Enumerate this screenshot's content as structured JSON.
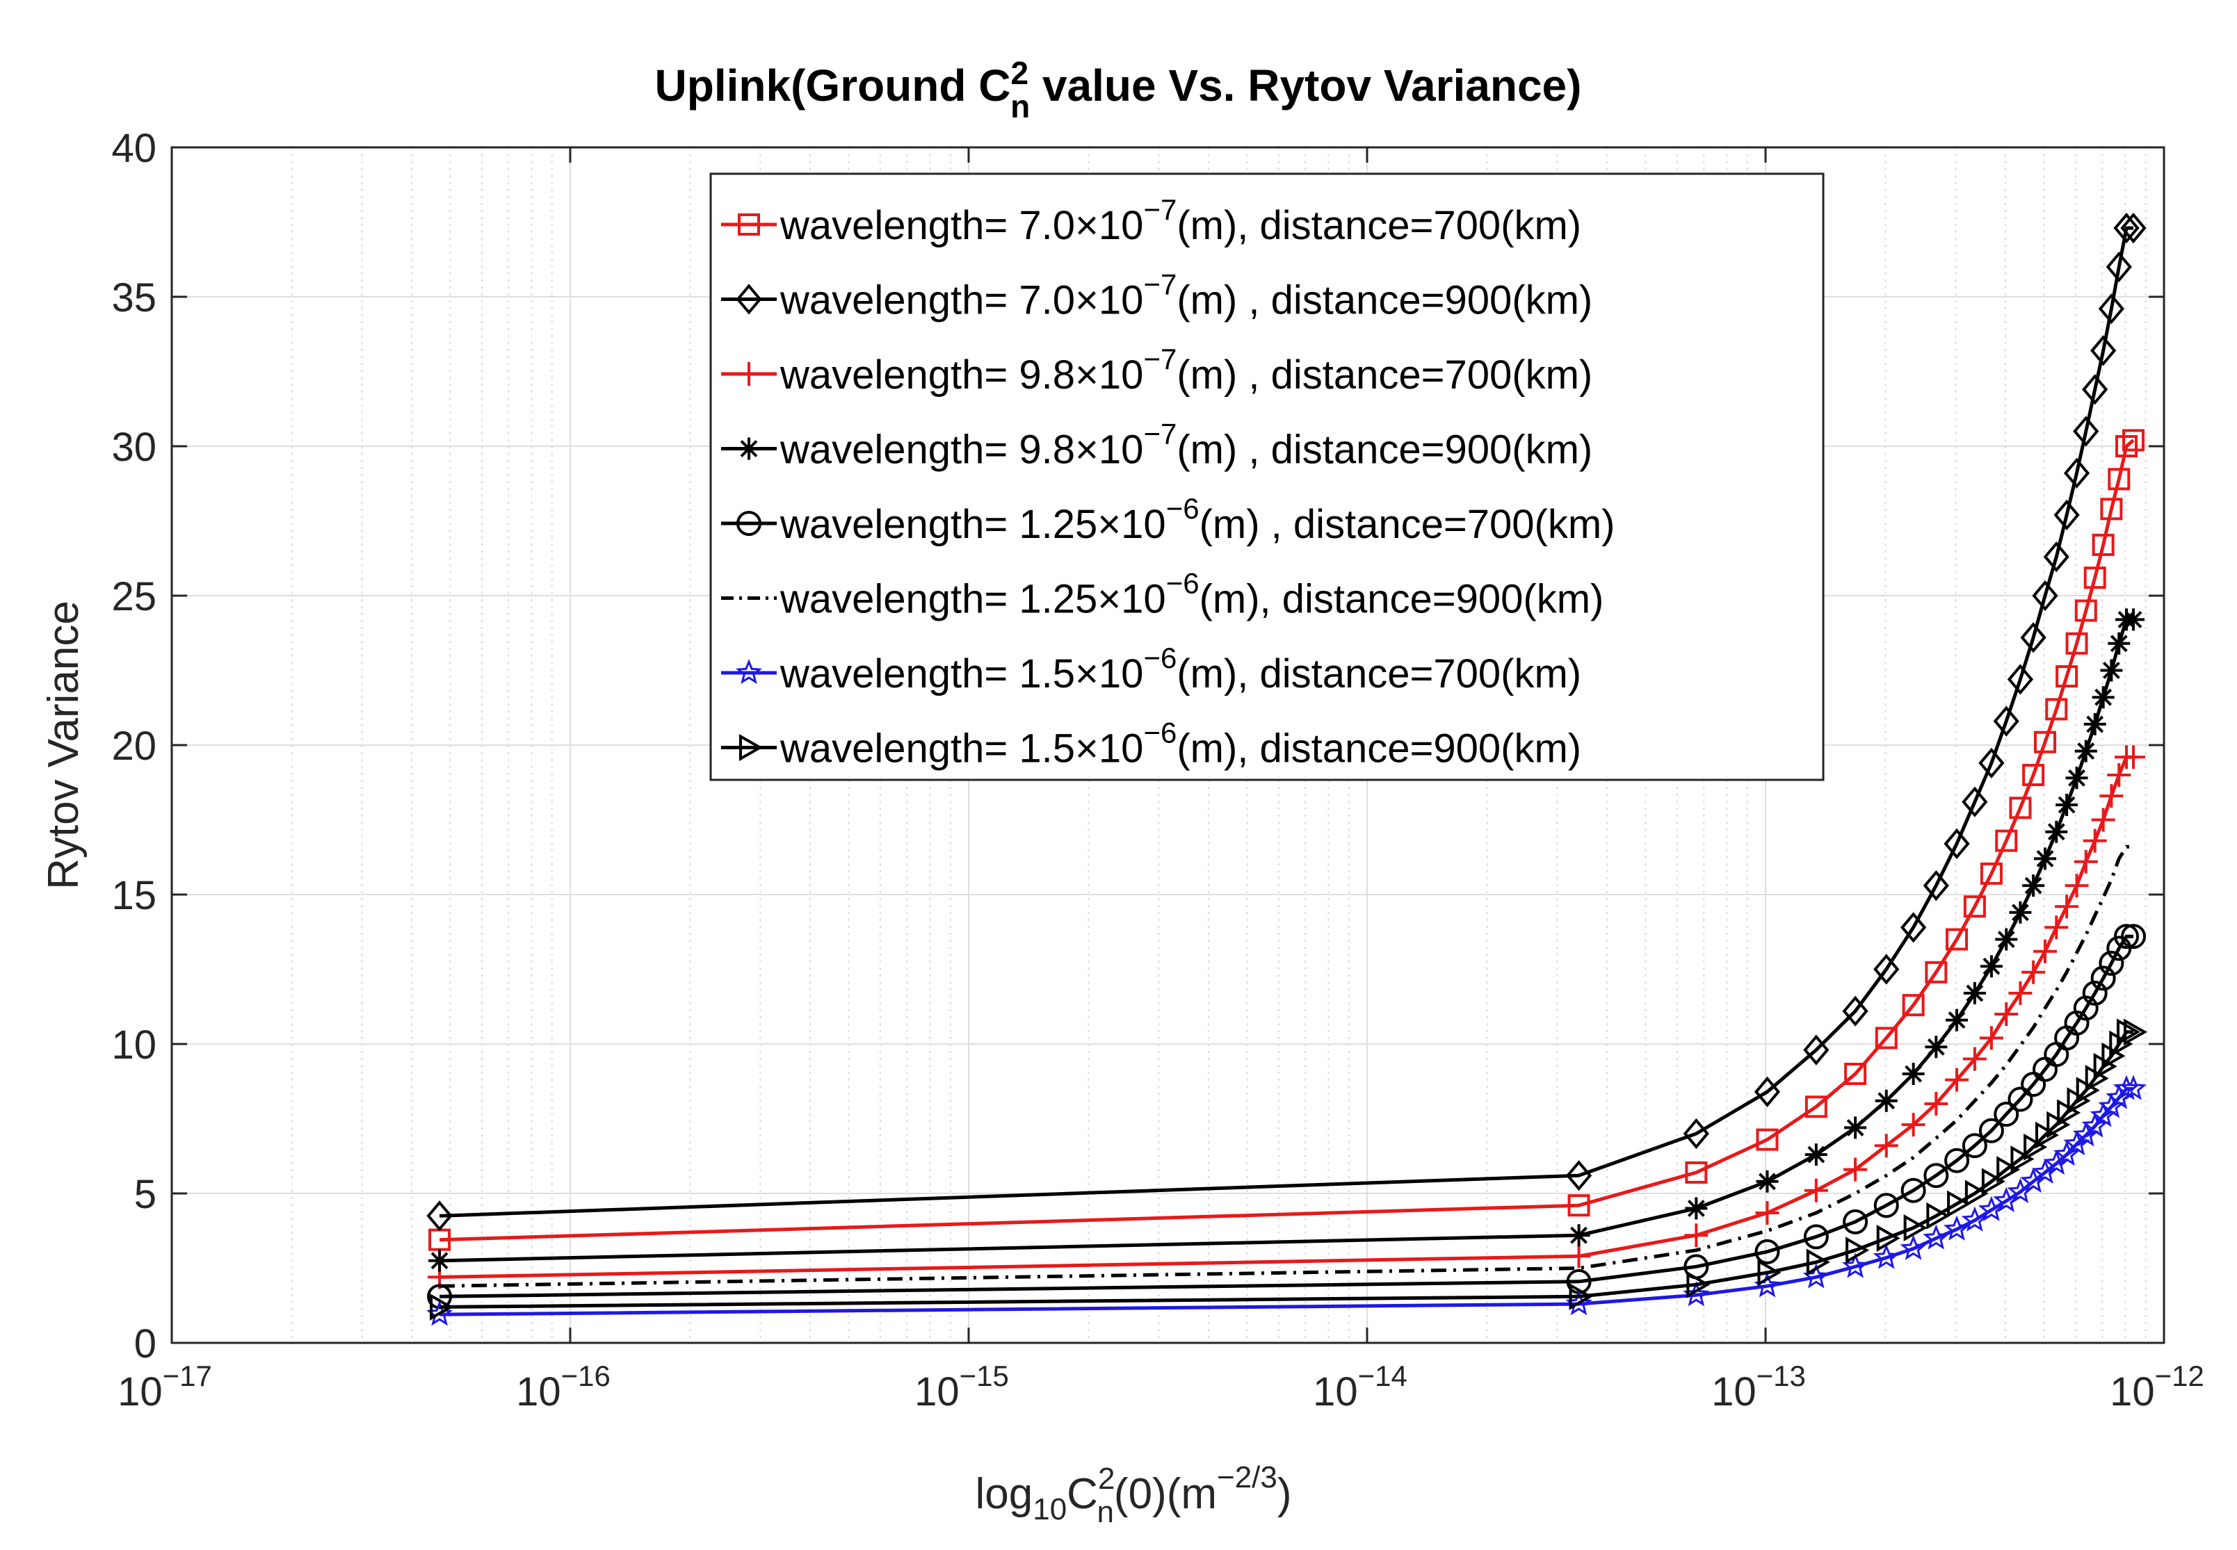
{
  "chart_data": {
    "type": "line",
    "title": {
      "prefix": "Uplink(Ground C",
      "sup": "2",
      "sub": "n",
      "suffix": " value Vs. Rytov Variance)"
    },
    "xlabel": {
      "part1": "log",
      "sub1": "10",
      "part2": "C",
      "sup2": "2",
      "sub2": "n",
      "part3": "(0)(m",
      "sup3": "−2/3",
      "part4": ")"
    },
    "ylabel": "Rytov Variance",
    "x_scale": "log",
    "xlim": [
      1e-17,
      1e-12
    ],
    "ylim": [
      0,
      40
    ],
    "grid": true,
    "legend_position": "top-right",
    "x_ticks": [
      {
        "base": "10",
        "exp": "−17",
        "value": 1e-17
      },
      {
        "base": "10",
        "exp": "−16",
        "value": 1e-16
      },
      {
        "base": "10",
        "exp": "−15",
        "value": 1e-15
      },
      {
        "base": "10",
        "exp": "−14",
        "value": 1e-14
      },
      {
        "base": "10",
        "exp": "−13",
        "value": 1e-13
      },
      {
        "base": "10",
        "exp": "−12",
        "value": 1e-12
      }
    ],
    "y_ticks": [
      "0",
      "5",
      "10",
      "15",
      "20",
      "25",
      "30",
      "35",
      "40"
    ],
    "x": [
      4.7e-17,
      3.4e-14,
      6.7e-14,
      1.01e-13,
      1.34e-13,
      1.68e-13,
      2.01e-13,
      2.35e-13,
      2.68e-13,
      3.02e-13,
      3.35e-13,
      3.69e-13,
      4.02e-13,
      4.36e-13,
      4.7e-13,
      5.03e-13,
      5.37e-13,
      5.7e-13,
      6.04e-13,
      6.37e-13,
      6.71e-13,
      7.04e-13,
      7.38e-13,
      7.71e-13,
      8.05e-13,
      8.38e-13
    ],
    "series": [
      {
        "name": "wavelength= 7.0×10⁻⁷(m), distance=700(km)",
        "legend": {
          "a": "wavelength= 7.0×10",
          "exp": "−7",
          "b": "(m), distance=700(km)"
        },
        "color": "#e8191a",
        "marker": "square",
        "dash": "solid",
        "values": [
          3.45,
          4.6,
          5.7,
          6.8,
          7.9,
          9.0,
          10.2,
          11.3,
          12.4,
          13.5,
          14.6,
          15.7,
          16.8,
          17.9,
          19.0,
          20.1,
          21.2,
          22.3,
          23.4,
          24.5,
          25.6,
          26.7,
          27.9,
          28.9,
          30.0,
          30.2
        ]
      },
      {
        "name": "wavelength= 7.0×10⁻⁷(m) , distance=900(km)",
        "legend": {
          "a": "wavelength= 7.0×10",
          "exp": "−7",
          "b": "(m) , distance=900(km)"
        },
        "color": "#000000",
        "marker": "diamond",
        "dash": "solid",
        "values": [
          4.25,
          5.6,
          7.0,
          8.4,
          9.8,
          11.1,
          12.5,
          13.9,
          15.3,
          16.7,
          18.1,
          19.4,
          20.8,
          22.2,
          23.6,
          25.0,
          26.3,
          27.7,
          29.1,
          30.5,
          31.9,
          33.2,
          34.6,
          36.0,
          37.3,
          37.3
        ]
      },
      {
        "name": "wavelength= 9.8×10⁻⁷(m) , distance=700(km)",
        "legend": {
          "a": "wavelength= 9.8×10",
          "exp": "−7",
          "b": "(m) , distance=700(km)"
        },
        "color": "#e8191a",
        "marker": "plus",
        "dash": "solid",
        "values": [
          2.2,
          2.9,
          3.6,
          4.35,
          5.1,
          5.8,
          6.6,
          7.3,
          8.0,
          8.8,
          9.5,
          10.2,
          11.0,
          11.7,
          12.4,
          13.1,
          13.9,
          14.6,
          15.3,
          16.1,
          16.8,
          17.5,
          18.3,
          19.0,
          19.6,
          19.6
        ]
      },
      {
        "name": "wavelength= 9.8×10⁻⁷(m)  , distance=900(km)",
        "legend": {
          "a": "wavelength= 9.8×10",
          "exp": "−7",
          "b": "(m)  , distance=900(km)"
        },
        "color": "#000000",
        "marker": "asterisk",
        "dash": "solid",
        "values": [
          2.75,
          3.6,
          4.5,
          5.4,
          6.3,
          7.2,
          8.1,
          9.0,
          9.9,
          10.8,
          11.7,
          12.6,
          13.5,
          14.4,
          15.3,
          16.2,
          17.1,
          18.0,
          18.9,
          19.8,
          20.7,
          21.6,
          22.5,
          23.4,
          24.2,
          24.2
        ]
      },
      {
        "name": "wavelength= 1.25×10⁻⁶(m) , distance=700(km)",
        "legend": {
          "a": "wavelength= 1.25×10",
          "exp": "−6",
          "b": "(m) , distance=700(km)"
        },
        "color": "#000000",
        "marker": "circle",
        "dash": "solid",
        "values": [
          1.55,
          2.05,
          2.55,
          3.05,
          3.55,
          4.05,
          4.6,
          5.1,
          5.6,
          6.1,
          6.6,
          7.1,
          7.65,
          8.15,
          8.65,
          9.15,
          9.65,
          10.2,
          10.7,
          11.2,
          11.7,
          12.2,
          12.7,
          13.2,
          13.6,
          13.6
        ]
      },
      {
        "name": "wavelength= 1.25×10⁻⁶(m), distance=900(km)",
        "legend": {
          "a": "wavelength= 1.25×10",
          "exp": "−6",
          "b": "(m), distance=900(km)"
        },
        "color": "#000000",
        "marker": "none",
        "dash": "dashdot",
        "values": [
          1.9,
          2.5,
          3.1,
          3.75,
          4.35,
          5.0,
          5.6,
          6.2,
          6.85,
          7.45,
          8.1,
          8.7,
          9.3,
          9.95,
          10.55,
          11.2,
          11.8,
          12.4,
          13.05,
          13.65,
          14.3,
          14.9,
          15.5,
          16.2,
          16.6,
          16.6
        ]
      },
      {
        "name": "wavelength= 1.5×10⁻⁶(m), distance=700(km)",
        "legend": {
          "a": "wavelength= 1.5×10",
          "exp": "−6",
          "b": "(m), distance=700(km)"
        },
        "color": "#1e18e6",
        "marker": "star",
        "dash": "solid",
        "values": [
          0.95,
          1.3,
          1.6,
          1.9,
          2.2,
          2.55,
          2.85,
          3.15,
          3.5,
          3.8,
          4.1,
          4.45,
          4.75,
          5.05,
          5.4,
          5.7,
          6.0,
          6.3,
          6.65,
          6.95,
          7.25,
          7.6,
          7.9,
          8.2,
          8.5,
          8.5
        ]
      },
      {
        "name": "wavelength= 1.5×10⁻⁶(m), distance=900(km)",
        "legend": {
          "a": "wavelength= 1.5×10",
          "exp": "−6",
          "b": "(m), distance=900(km)"
        },
        "color": "#000000",
        "marker": "triangle-right",
        "dash": "solid",
        "values": [
          1.2,
          1.55,
          1.95,
          2.35,
          2.7,
          3.1,
          3.5,
          3.85,
          4.25,
          4.65,
          5.0,
          5.4,
          5.8,
          6.15,
          6.55,
          6.95,
          7.3,
          7.7,
          8.1,
          8.45,
          8.85,
          9.25,
          9.6,
          10.0,
          10.4,
          10.4
        ]
      }
    ]
  }
}
